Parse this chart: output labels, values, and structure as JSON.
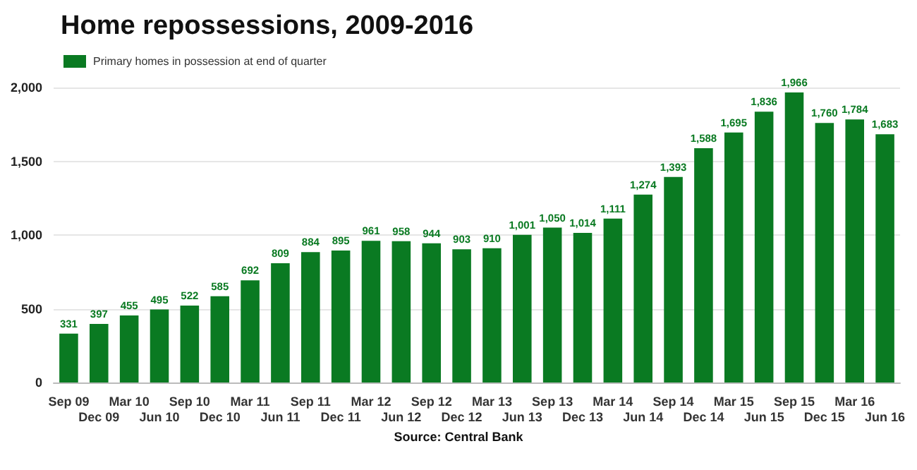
{
  "chart_data": {
    "type": "bar",
    "title": "Home repossessions, 2009-2016",
    "categories": [
      "Sep 09",
      "Dec 09",
      "Mar 10",
      "Jun 10",
      "Sep 10",
      "Dec 10",
      "Mar 11",
      "Jun 11",
      "Sep 11",
      "Dec 11",
      "Mar 12",
      "Jun 12",
      "Sep 12",
      "Dec 12",
      "Mar 13",
      "Jun 13",
      "Sep 13",
      "Dec 13",
      "Mar 14",
      "Jun 14",
      "Sep 14",
      "Dec 14",
      "Mar 15",
      "Jun 15",
      "Sep 15",
      "Dec 15",
      "Mar 16",
      "Jun 16"
    ],
    "series": [
      {
        "name": "Primary homes in possession at end of quarter",
        "color": "#0a7a22",
        "values": [
          331,
          397,
          455,
          495,
          522,
          585,
          692,
          809,
          884,
          895,
          961,
          958,
          944,
          903,
          910,
          1001,
          1050,
          1014,
          1111,
          1274,
          1393,
          1588,
          1695,
          1836,
          1966,
          1760,
          1784,
          1683
        ],
        "value_labels": [
          "331",
          "397",
          "455",
          "495",
          "522",
          "585",
          "692",
          "809",
          "884",
          "895",
          "961",
          "958",
          "944",
          "903",
          "910",
          "1,001",
          "1,050",
          "1,014",
          "1,111",
          "1,274",
          "1,393",
          "1,588",
          "1,695",
          "1,836",
          "1,966",
          "1,760",
          "1,784",
          "1,683"
        ]
      }
    ],
    "ylim": [
      0,
      2000
    ],
    "yticks": [
      0,
      500,
      {
        "value": 1000,
        "label": "1,000"
      },
      {
        "value": 1500,
        "label": "1,500"
      },
      {
        "value": 2000,
        "label": "2,000"
      }
    ],
    "grid": "y",
    "legend": "top left",
    "annotations": [
      "Source: Central Bank"
    ]
  }
}
